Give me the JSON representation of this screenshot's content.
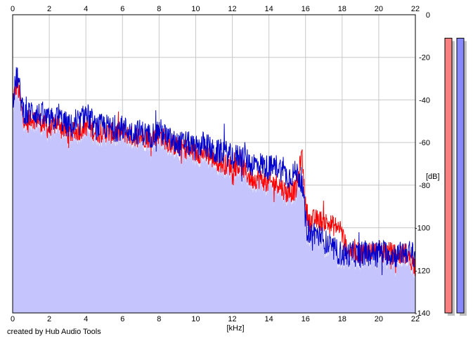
{
  "credit": "created by Hub Audio Tools",
  "colors": {
    "background": "#ffffff",
    "plot_background": "#ffffff",
    "grid": "#c8c8c8",
    "fill": "#c6c4fc",
    "left_channel": "#ff0000",
    "right_channel": "#0000cc",
    "left_meter": "#f98080",
    "right_meter": "#8888ff"
  },
  "chart_data": {
    "type": "line",
    "title": "",
    "xlabel": "[kHz]",
    "ylabel": "[dB]",
    "xlim": [
      0,
      22
    ],
    "ylim": [
      -140,
      0
    ],
    "x_ticks": [
      "0",
      "2",
      "4",
      "6",
      "8",
      "10",
      "12",
      "14",
      "16",
      "18",
      "20",
      "22"
    ],
    "y_ticks": [
      "0",
      "-20",
      "-40",
      "-60",
      "-80",
      "-100",
      "-120",
      "-140"
    ],
    "grid": true,
    "x_axis_position": "top and bottom",
    "y_axis_position": "right",
    "series": [
      {
        "color": "#ff0000",
        "x": [
          0,
          0.25,
          0.5,
          0.75,
          1,
          1.5,
          2,
          2.5,
          3,
          3.5,
          4,
          4.5,
          5,
          5.5,
          6,
          6.5,
          7,
          7.5,
          8,
          8.5,
          9,
          9.5,
          10,
          10.5,
          11,
          11.5,
          12,
          12.5,
          13,
          13.5,
          14,
          14.5,
          15,
          15.5,
          15.8,
          16,
          16.2,
          16.5,
          17,
          17.5,
          17.9,
          18.2,
          18.5,
          19,
          19.5,
          20,
          20.5,
          21,
          21.5,
          22
        ],
        "y": [
          -40,
          -32,
          -45,
          -52,
          -48,
          -50,
          -54,
          -50,
          -56,
          -55,
          -52,
          -55,
          -55,
          -56,
          -55,
          -57,
          -57,
          -58,
          -56,
          -60,
          -62,
          -63,
          -65,
          -65,
          -68,
          -70,
          -71,
          -71,
          -77,
          -77,
          -79,
          -79,
          -84,
          -82,
          -65,
          -90,
          -97,
          -96,
          -97,
          -99,
          -100,
          -109,
          -111,
          -112,
          -111,
          -111,
          -111,
          -113,
          -112,
          -118
        ]
      },
      {
        "color": "#0000cc",
        "x": [
          0,
          0.25,
          0.5,
          0.75,
          1,
          1.5,
          2,
          2.5,
          3,
          3.5,
          4,
          4.5,
          5,
          5.5,
          6,
          6.5,
          7,
          7.5,
          8,
          8.5,
          9,
          9.5,
          10,
          10.5,
          11,
          11.5,
          12,
          12.5,
          13,
          13.5,
          14,
          14.5,
          15,
          15.5,
          15.8,
          16,
          16.2,
          16.5,
          17,
          17.5,
          17.9,
          18.2,
          18.5,
          19,
          19.5,
          20,
          20.5,
          21,
          21.5,
          22
        ],
        "y": [
          -40,
          -28,
          -42,
          -48,
          -45,
          -47,
          -50,
          -48,
          -52,
          -53,
          -46,
          -53,
          -52,
          -54,
          -53,
          -55,
          -55,
          -57,
          -54,
          -58,
          -61,
          -60,
          -63,
          -60,
          -65,
          -64,
          -67,
          -66,
          -70,
          -70,
          -72,
          -71,
          -76,
          -74,
          -78,
          -97,
          -103,
          -102,
          -106,
          -110,
          -112,
          -113,
          -112,
          -113,
          -112,
          -111,
          -112,
          -113,
          -111,
          -113
        ]
      }
    ],
    "meters": [
      {
        "color": "#f98080",
        "top": -11,
        "bottom": -140
      },
      {
        "color": "#8888ff",
        "top": -11,
        "bottom": -140
      }
    ]
  }
}
